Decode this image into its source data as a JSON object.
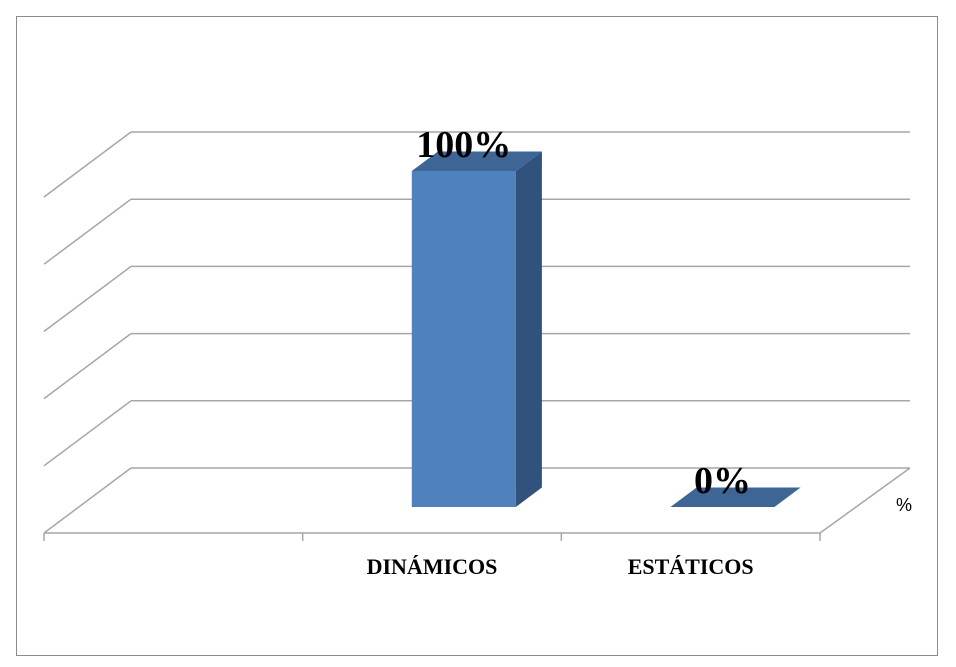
{
  "chart_data": {
    "type": "bar",
    "style": "3d-column",
    "categories": [
      "",
      "DINÁMICOS",
      "ESTÁTICOS"
    ],
    "series": [
      {
        "name": "%",
        "values": [
          null,
          100,
          0
        ],
        "data_labels": [
          "",
          "100%",
          "0%"
        ]
      }
    ],
    "ylim": [
      0,
      100
    ],
    "grid": true,
    "colors": {
      "bar_front": "#4f81bd",
      "bar_side": "#30527d",
      "bar_top": "#3d6595",
      "grid": "#a6a6a6",
      "frame": "#8c8c8c"
    }
  }
}
